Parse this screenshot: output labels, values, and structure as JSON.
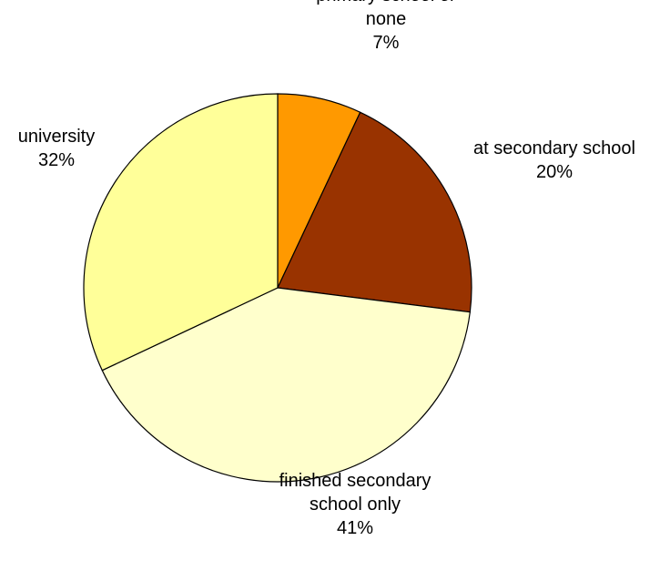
{
  "chart_data": {
    "type": "pie",
    "title": "",
    "start_angle_deg": 0,
    "direction": "clockwise",
    "legend": "none",
    "slices": [
      {
        "name": "primary school or none",
        "label_lines": [
          "primary school or",
          "none"
        ],
        "value": 7,
        "percent_label": "7%",
        "color": "#FF9900"
      },
      {
        "name": "at secondary school",
        "label_lines": [
          "at secondary school"
        ],
        "value": 20,
        "percent_label": "20%",
        "color": "#993300"
      },
      {
        "name": "finished secondary school only",
        "label_lines": [
          "finished secondary",
          "school only"
        ],
        "value": 41,
        "percent_label": "41%",
        "color": "#FFFFCC"
      },
      {
        "name": "university",
        "label_lines": [
          "university"
        ],
        "value": 32,
        "percent_label": "32%",
        "color": "#FFFF99"
      }
    ]
  }
}
